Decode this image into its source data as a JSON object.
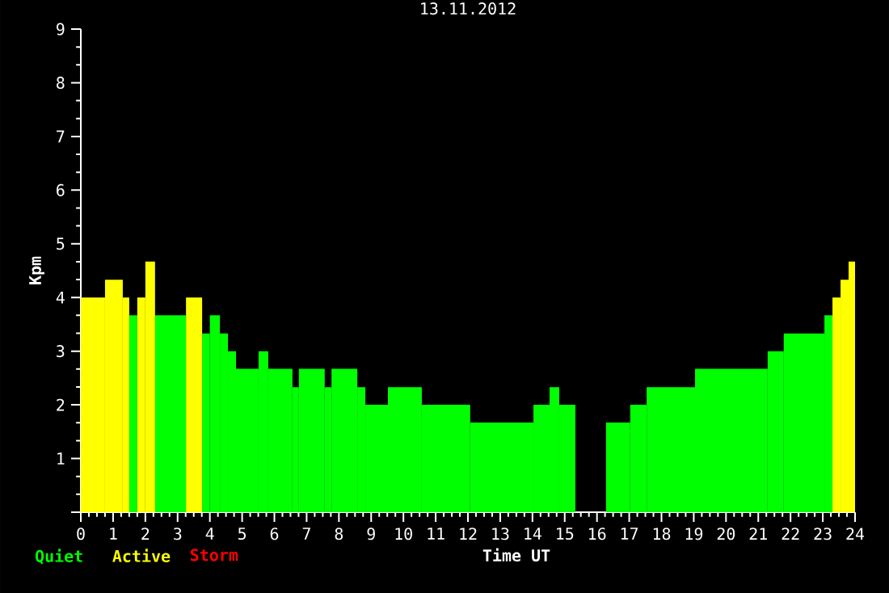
{
  "chart_data": {
    "type": "histogram",
    "title": "13.11.2012",
    "xlabel": "Time UT",
    "ylabel": "Kpm",
    "bins": [
      0,
      0.75,
      1.3,
      1.5,
      1.75,
      2.0,
      2.3,
      3.26,
      3.76,
      4.0,
      4.31,
      4.56,
      4.81,
      5.51,
      5.81,
      6.56,
      6.76,
      7.56,
      7.77,
      8.57,
      8.82,
      9.52,
      10.57,
      12.07,
      14.03,
      14.53,
      14.83,
      15.33,
      16.28,
      17.03,
      17.54,
      19.04,
      21.29,
      21.79,
      23.05,
      23.3,
      23.55,
      23.8,
      24
    ],
    "series": [
      {
        "name": "Quiet",
        "color": "#00ff00",
        "values": [
          null,
          null,
          null,
          3.67,
          null,
          null,
          3.67,
          null,
          3.33,
          3.67,
          3.33,
          3,
          2.67,
          3,
          2.67,
          2.33,
          2.67,
          2.33,
          2.67,
          2.33,
          2,
          2.33,
          2,
          1.67,
          2,
          2.33,
          2,
          null,
          1.67,
          2,
          2.33,
          2.67,
          3,
          3.33,
          3.67,
          null,
          null,
          null
        ]
      },
      {
        "name": "Active",
        "color": "#ffff00",
        "values": [
          4,
          4.33,
          4,
          null,
          4,
          4.67,
          null,
          4,
          null,
          null,
          null,
          null,
          null,
          null,
          null,
          null,
          null,
          null,
          null,
          null,
          null,
          null,
          null,
          null,
          null,
          null,
          null,
          null,
          null,
          null,
          null,
          null,
          null,
          null,
          null,
          4,
          4.33,
          4.67
        ]
      }
    ],
    "annotations": [
      "Storm"
    ],
    "xlim": [
      0,
      24
    ],
    "ylim": [
      0,
      9
    ],
    "xticks": [
      0,
      1,
      2,
      3,
      4,
      5,
      6,
      7,
      8,
      9,
      10,
      11,
      12,
      13,
      14,
      15,
      16,
      17,
      18,
      19,
      20,
      21,
      22,
      23,
      24
    ],
    "yticks": [
      {
        "value": 0,
        "label": null
      },
      1,
      2,
      3,
      4,
      5,
      6,
      7,
      8,
      9
    ],
    "legend": "bottom left"
  }
}
